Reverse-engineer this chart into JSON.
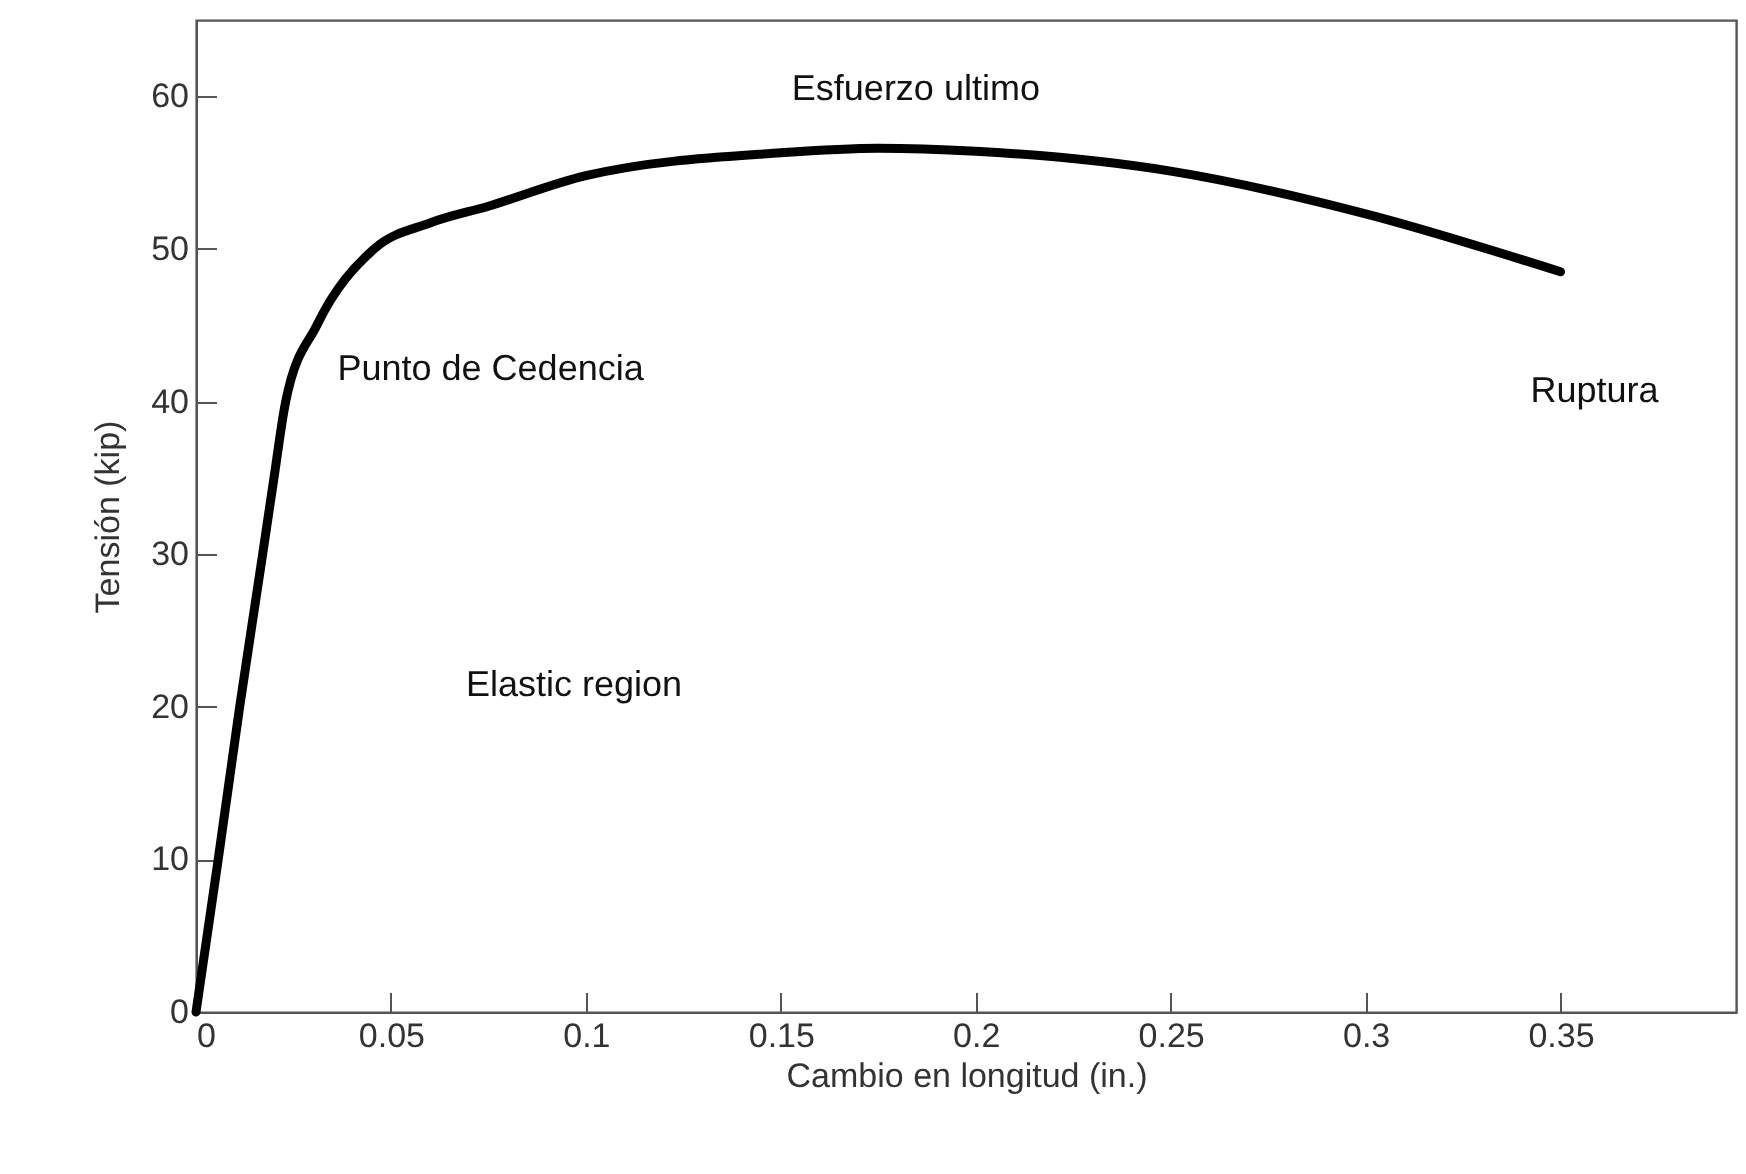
{
  "chart_data": {
    "type": "line",
    "xlabel": "Cambio en longitud (in.)",
    "ylabel": "Tensión (kip)",
    "x": [
      0,
      0.0057,
      0.0112,
      0.0171,
      0.02,
      0.023,
      0.031,
      0.0457,
      0.06,
      0.075,
      0.1,
      0.15,
      0.175,
      0.2,
      0.25,
      0.3,
      0.35
    ],
    "series": [
      {
        "color": "#000000",
        "values": [
          0,
          10,
          20,
          30,
          35,
          40,
          45,
          50,
          51.7,
          52.8,
          54.8,
          56.3,
          56.6,
          56.4,
          55.1,
          52.3,
          48.5
        ]
      }
    ],
    "xlim": [
      0,
      0.395
    ],
    "xticks": [
      0,
      0.05,
      0.1,
      0.15,
      0.2,
      0.25,
      0.3,
      0.35
    ],
    "ylim": [
      0,
      65
    ],
    "yticks": [
      0,
      10,
      20,
      30,
      40,
      50,
      60
    ],
    "grid": false,
    "annotations": [
      {
        "text": "Esfuerzo ultimo",
        "x": 0.14,
        "y": 56.5
      },
      {
        "text": "Punto de Cedencia",
        "x": 0.025,
        "y": 40
      },
      "Elastic region",
      {
        "text": "Ruptura",
        "x": 0.35,
        "y": 48.5
      }
    ]
  }
}
